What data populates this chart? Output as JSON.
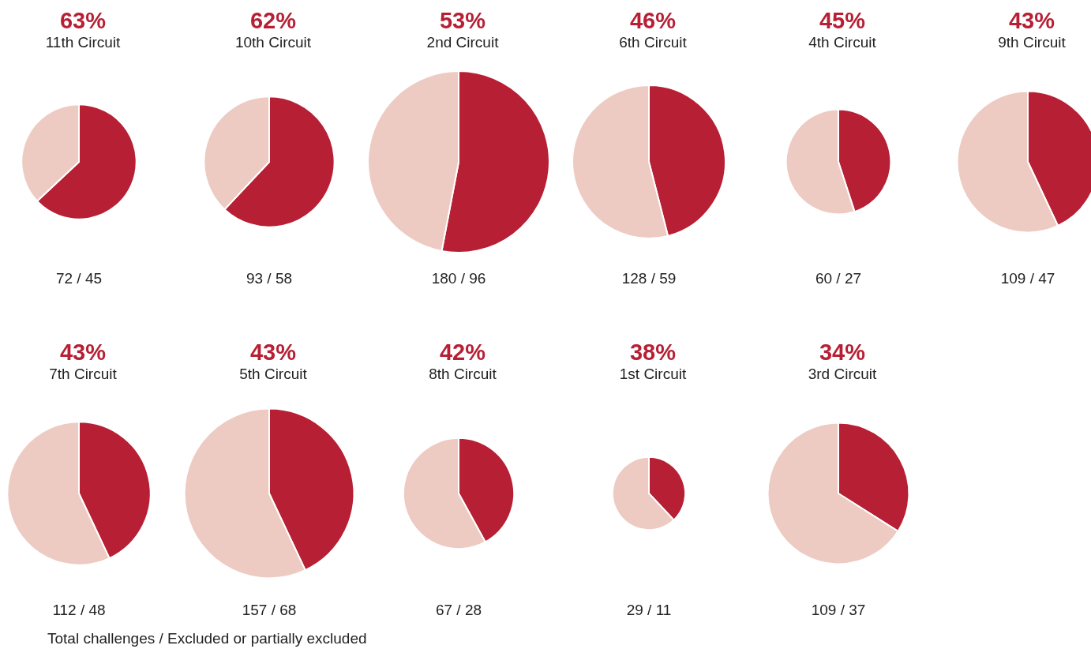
{
  "chart_data": [
    {
      "type": "pie",
      "title": "63%",
      "subtitle": "11th Circuit",
      "categories": [
        null,
        null
      ],
      "values": [
        63,
        37
      ],
      "colors": [
        "#b71f34",
        "#edcbc2"
      ],
      "annotations": [
        "72 / 45"
      ]
    },
    {
      "type": "pie",
      "title": "62%",
      "subtitle": "10th Circuit",
      "categories": [
        null,
        null
      ],
      "values": [
        62,
        38
      ],
      "colors": [
        "#b71f34",
        "#edcbc2"
      ],
      "annotations": [
        "93 / 58"
      ]
    },
    {
      "type": "pie",
      "title": "53%",
      "subtitle": "2nd Circuit",
      "categories": [
        null,
        null
      ],
      "values": [
        53,
        47
      ],
      "colors": [
        "#b71f34",
        "#edcbc2"
      ],
      "annotations": [
        "180 / 96"
      ]
    },
    {
      "type": "pie",
      "title": "46%",
      "subtitle": "6th Circuit",
      "categories": [
        null,
        null
      ],
      "values": [
        46,
        54
      ],
      "colors": [
        "#b71f34",
        "#edcbc2"
      ],
      "annotations": [
        "128 / 59"
      ]
    },
    {
      "type": "pie",
      "title": "45%",
      "subtitle": "4th Circuit",
      "categories": [
        null,
        null
      ],
      "values": [
        45,
        55
      ],
      "colors": [
        "#b71f34",
        "#edcbc2"
      ],
      "annotations": [
        "60 / 27"
      ]
    },
    {
      "type": "pie",
      "title": "43%",
      "subtitle": "9th Circuit",
      "categories": [
        null,
        null
      ],
      "values": [
        43,
        57
      ],
      "colors": [
        "#b71f34",
        "#edcbc2"
      ],
      "annotations": [
        "109 / 47"
      ]
    },
    {
      "type": "pie",
      "title": "43%",
      "subtitle": "7th Circuit",
      "categories": [
        null,
        null
      ],
      "values": [
        43,
        57
      ],
      "colors": [
        "#b71f34",
        "#edcbc2"
      ],
      "annotations": [
        "112 / 48"
      ]
    },
    {
      "type": "pie",
      "title": "43%",
      "subtitle": "5th Circuit",
      "categories": [
        null,
        null
      ],
      "values": [
        43,
        57
      ],
      "colors": [
        "#b71f34",
        "#edcbc2"
      ],
      "annotations": [
        "157 / 68"
      ]
    },
    {
      "type": "pie",
      "title": "42%",
      "subtitle": "8th Circuit",
      "categories": [
        null,
        null
      ],
      "values": [
        42,
        58
      ],
      "colors": [
        "#b71f34",
        "#edcbc2"
      ],
      "annotations": [
        "67 / 28"
      ]
    },
    {
      "type": "pie",
      "title": "38%",
      "subtitle": "1st Circuit",
      "categories": [
        null,
        null
      ],
      "values": [
        38,
        62
      ],
      "colors": [
        "#b71f34",
        "#edcbc2"
      ],
      "annotations": [
        "29 / 11"
      ]
    },
    {
      "type": "pie",
      "title": "34%",
      "subtitle": "3rd Circuit",
      "categories": [
        null,
        null
      ],
      "values": [
        34,
        66
      ],
      "colors": [
        "#b71f34",
        "#edcbc2"
      ],
      "annotations": [
        "109 / 37",
        "Total challenges / Excluded or partially excluded"
      ]
    }
  ]
}
